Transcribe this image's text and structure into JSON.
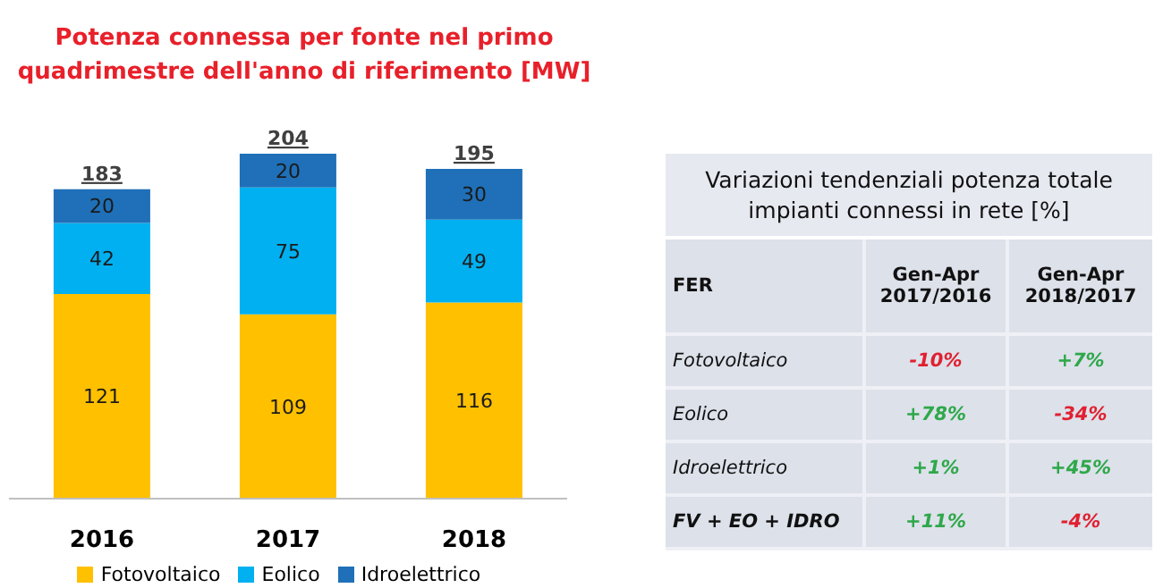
{
  "chart_data": [
    {
      "type": "bar",
      "title": "Potenza connessa per fonte nel primo quadrimestre dell'anno di riferimento [MW]",
      "categories": [
        "2016",
        "2017",
        "2018"
      ],
      "stacked": true,
      "data_labels": true,
      "legend": "bottom",
      "totals": [
        "183",
        "204",
        "195"
      ],
      "series": [
        {
          "name": "Fotovoltaico",
          "color": "#ffc000",
          "values": [
            121,
            109,
            116
          ]
        },
        {
          "name": "Eolico",
          "color": "#00b0f0",
          "values": [
            42,
            75,
            49
          ]
        },
        {
          "name": "Idroelettrico",
          "color": "#1f70b8",
          "values": [
            20,
            20,
            30
          ]
        }
      ]
    },
    {
      "type": "other",
      "title": "Variazioni tendenziali potenza totale impianti connessi in rete [%]",
      "annotations": [
        "FER",
        "Gen-Apr 2017/2016",
        "Gen-Apr 2018/2017",
        "Fotovoltaico",
        "-10%",
        "+7%",
        "Eolico",
        "+78%",
        "-34%",
        "Idroelettrico",
        "+1%",
        "+45%",
        "FV + EO + IDRO",
        "+11%",
        "-4%"
      ]
    }
  ]
}
